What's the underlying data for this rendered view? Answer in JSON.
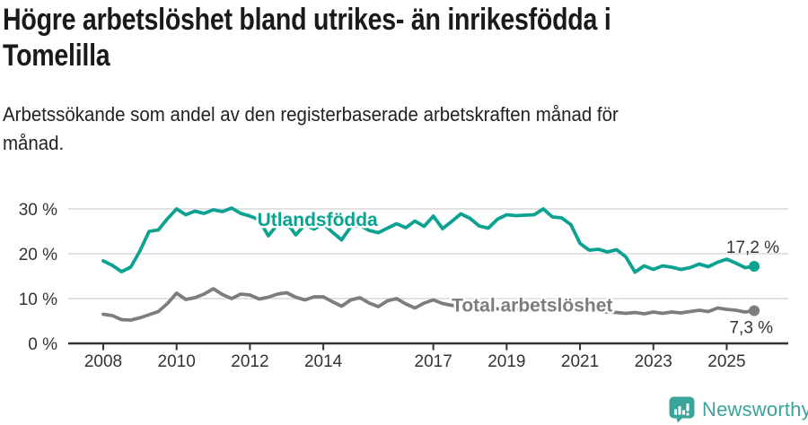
{
  "header": {
    "title": "Högre arbetslöshet bland utrikes- än inrikesfödda i\nTomelilla",
    "subtitle": "Arbetssökande som andel av den registerbaserade arbetskraften månad för\nmånad."
  },
  "footer": {
    "brand": "Newsworthy",
    "logo_icon": "bar-chart-speech-bubble-icon"
  },
  "colors": {
    "foreign_series": "#0ba292",
    "total_series": "#7d7d7d",
    "axis": "#333333",
    "gridline": "#d9d9d9",
    "annotation_text": "#333333",
    "brand_teal": "#3aa39a"
  },
  "chart_data": {
    "type": "line",
    "title": "Högre arbetslöshet bland utrikes- än inrikesfödda i Tomelilla",
    "subtitle": "Arbetssökande som andel av den registerbaserade arbetskraften månad för månad.",
    "x_unit": "year (decimal, quarterly samples read from monthly curve)",
    "xlim": [
      2007.6,
      2026.6
    ],
    "ylim": [
      0,
      32
    ],
    "grid": "horizontal",
    "legend": "inline-labels-on-lines",
    "xticks": [
      2008,
      2010,
      2012,
      2014,
      2017,
      2019,
      2021,
      2023,
      2025
    ],
    "xtick_labels": [
      "2008",
      "2010",
      "2012",
      "2014",
      "2017",
      "2019",
      "2021",
      "2023",
      "2025"
    ],
    "yticks": [
      0,
      10,
      20,
      30
    ],
    "ytick_labels": [
      "0 %",
      "10 %",
      "20 %",
      "30 %"
    ],
    "x": [
      2008,
      2008.25,
      2008.5,
      2008.75,
      2009,
      2009.25,
      2009.5,
      2009.75,
      2010,
      2010.25,
      2010.5,
      2010.75,
      2011,
      2011.25,
      2011.5,
      2011.75,
      2012,
      2012.25,
      2012.5,
      2012.75,
      2013,
      2013.25,
      2013.5,
      2013.75,
      2014,
      2014.25,
      2014.5,
      2014.75,
      2015,
      2015.25,
      2015.5,
      2015.75,
      2016,
      2016.25,
      2016.5,
      2016.75,
      2017,
      2017.25,
      2017.5,
      2017.75,
      2018,
      2018.25,
      2018.5,
      2018.75,
      2019,
      2019.25,
      2019.5,
      2019.75,
      2020,
      2020.25,
      2020.5,
      2020.75,
      2021,
      2021.25,
      2021.5,
      2021.75,
      2022,
      2022.25,
      2022.5,
      2022.75,
      2023,
      2023.25,
      2023.5,
      2023.75,
      2024,
      2024.25,
      2024.5,
      2024.75,
      2025,
      2025.25,
      2025.5,
      2025.75
    ],
    "series": [
      {
        "name": "Utlandsfödda",
        "color": "#0ba292",
        "end_value": 17.2,
        "end_label": "17,2 %",
        "end_label_position": "above",
        "label_anchor": {
          "x_year": 2012.2,
          "value": 26.2
        },
        "values": [
          18.4,
          17.4,
          16.0,
          17.0,
          20.6,
          25.0,
          25.3,
          27.8,
          30.0,
          28.7,
          29.5,
          29.0,
          29.8,
          29.4,
          30.2,
          29.0,
          28.4,
          27.6,
          24.0,
          26.5,
          27.0,
          24.2,
          26.5,
          25.5,
          26.7,
          24.8,
          23.1,
          26.0,
          26.3,
          25.2,
          24.7,
          25.7,
          26.7,
          25.8,
          27.3,
          26.1,
          28.4,
          25.6,
          27.2,
          28.9,
          27.9,
          26.2,
          25.7,
          27.7,
          28.7,
          28.5,
          28.6,
          28.7,
          30.0,
          28.2,
          28.0,
          26.5,
          22.3,
          20.8,
          21.0,
          20.4,
          20.9,
          19.3,
          15.9,
          17.3,
          16.5,
          17.3,
          17.0,
          16.5,
          16.9,
          17.7,
          17.1,
          18.1,
          18.8,
          17.9,
          16.9,
          17.2
        ]
      },
      {
        "name": "Total arbetslöshet",
        "color": "#7d7d7d",
        "end_value": 7.3,
        "end_label": "7,3 %",
        "end_label_position": "below",
        "label_anchor": {
          "x_year": 2017.5,
          "value": 7.1
        },
        "values": [
          6.5,
          6.2,
          5.3,
          5.2,
          5.7,
          6.4,
          7.1,
          8.9,
          11.2,
          9.8,
          10.2,
          11.0,
          12.2,
          10.9,
          10.0,
          11.0,
          10.8,
          9.9,
          10.3,
          11.0,
          11.3,
          10.3,
          9.7,
          10.4,
          10.4,
          9.3,
          8.3,
          9.7,
          10.2,
          9.0,
          8.2,
          9.5,
          10.0,
          8.8,
          7.9,
          9.0,
          9.7,
          8.9,
          8.5,
          8.2,
          8.5,
          8.0,
          7.8,
          7.7,
          7.9,
          7.6,
          7.4,
          7.3,
          7.5,
          8.3,
          8.6,
          8.1,
          7.8,
          7.5,
          7.2,
          7.0,
          6.9,
          6.7,
          6.9,
          6.6,
          7.0,
          6.7,
          7.0,
          6.8,
          7.1,
          7.4,
          7.1,
          7.9,
          7.6,
          7.4,
          7.0,
          7.3
        ]
      }
    ]
  }
}
